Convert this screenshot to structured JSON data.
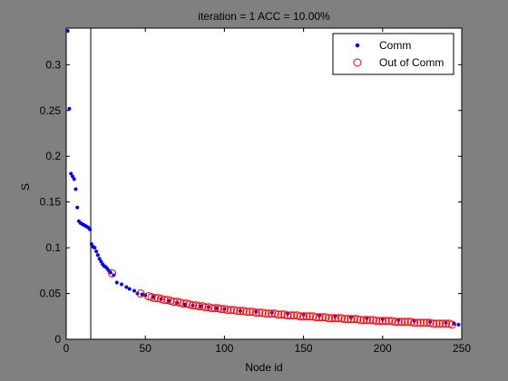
{
  "window": {
    "background": "#808080"
  },
  "chart_data": {
    "type": "scatter",
    "title": "iteration = 1   ACC = 10.00%",
    "xlabel": "Node id",
    "ylabel": "S",
    "xlim": [
      0,
      250
    ],
    "ylim": [
      0,
      0.34
    ],
    "xticks": [
      0,
      50,
      100,
      150,
      200,
      250
    ],
    "yticks": [
      0,
      0.05,
      0.1,
      0.15,
      0.2,
      0.25,
      0.3
    ],
    "ytick_labels": [
      "0",
      "0.05",
      "0.1",
      "0.15",
      "0.2",
      "0.25",
      "0.3"
    ],
    "grid": false,
    "legend_position": "top-right",
    "vline_x": 15.5,
    "series": [
      {
        "name": "Comm",
        "marker": "dot",
        "color": "#0000ff",
        "x": [
          1,
          2,
          3,
          4,
          5,
          6,
          7,
          8,
          9,
          10,
          11,
          12,
          13,
          14,
          15,
          16,
          17,
          18,
          19,
          20,
          21,
          22,
          23,
          24,
          25,
          26,
          27,
          28,
          30,
          32,
          35,
          38,
          40,
          43,
          45,
          48,
          50,
          55,
          60,
          65,
          70,
          75,
          80,
          85,
          90,
          95,
          100,
          110,
          120,
          130,
          140,
          150,
          160,
          170,
          180,
          190,
          200,
          210,
          220,
          230,
          240,
          245,
          248
        ],
        "y": [
          0.337,
          0.252,
          0.181,
          0.178,
          0.175,
          0.164,
          0.144,
          0.129,
          0.127,
          0.126,
          0.125,
          0.124,
          0.123,
          0.122,
          0.12,
          0.104,
          0.101,
          0.1,
          0.096,
          0.092,
          0.088,
          0.085,
          0.082,
          0.08,
          0.079,
          0.077,
          0.075,
          0.073,
          0.07,
          0.062,
          0.06,
          0.057,
          0.055,
          0.053,
          0.05,
          0.049,
          0.048,
          0.046,
          0.044,
          0.042,
          0.04,
          0.038,
          0.037,
          0.036,
          0.035,
          0.034,
          0.033,
          0.031,
          0.03,
          0.029,
          0.028,
          0.027,
          0.026,
          0.025,
          0.024,
          0.023,
          0.022,
          0.021,
          0.02,
          0.019,
          0.018,
          0.017,
          0.016
        ]
      },
      {
        "name": "Out of Comm",
        "marker": "circle",
        "color": "#ff0000",
        "x": [
          29,
          47,
          52,
          54,
          56,
          58,
          60,
          62,
          64,
          66,
          68,
          70,
          72,
          74,
          76,
          78,
          80,
          82,
          84,
          86,
          88,
          90,
          92,
          94,
          96,
          98,
          100,
          102,
          104,
          106,
          108,
          110,
          112,
          114,
          116,
          118,
          120,
          122,
          124,
          126,
          128,
          130,
          132,
          134,
          136,
          138,
          140,
          142,
          144,
          146,
          148,
          150,
          152,
          154,
          156,
          158,
          160,
          162,
          164,
          166,
          168,
          170,
          172,
          174,
          176,
          178,
          180,
          182,
          184,
          186,
          188,
          190,
          192,
          194,
          196,
          198,
          200,
          202,
          204,
          206,
          208,
          210,
          212,
          214,
          216,
          218,
          220,
          222,
          224,
          226,
          228,
          230,
          232,
          234,
          236,
          238,
          240,
          242,
          244
        ],
        "y": [
          0.072,
          0.05,
          0.047,
          0.046,
          0.045,
          0.045,
          0.044,
          0.043,
          0.043,
          0.042,
          0.041,
          0.041,
          0.04,
          0.039,
          0.039,
          0.038,
          0.037,
          0.037,
          0.036,
          0.036,
          0.035,
          0.035,
          0.034,
          0.034,
          0.034,
          0.033,
          0.033,
          0.032,
          0.032,
          0.032,
          0.031,
          0.031,
          0.031,
          0.03,
          0.03,
          0.03,
          0.029,
          0.029,
          0.029,
          0.028,
          0.028,
          0.028,
          0.028,
          0.027,
          0.027,
          0.027,
          0.026,
          0.026,
          0.026,
          0.026,
          0.025,
          0.025,
          0.025,
          0.025,
          0.025,
          0.024,
          0.024,
          0.024,
          0.024,
          0.023,
          0.023,
          0.023,
          0.023,
          0.023,
          0.022,
          0.022,
          0.022,
          0.022,
          0.022,
          0.021,
          0.021,
          0.021,
          0.021,
          0.021,
          0.02,
          0.02,
          0.02,
          0.02,
          0.02,
          0.02,
          0.019,
          0.019,
          0.019,
          0.019,
          0.019,
          0.019,
          0.018,
          0.018,
          0.018,
          0.018,
          0.018,
          0.018,
          0.017,
          0.017,
          0.017,
          0.017,
          0.017,
          0.017,
          0.016
        ]
      }
    ]
  }
}
